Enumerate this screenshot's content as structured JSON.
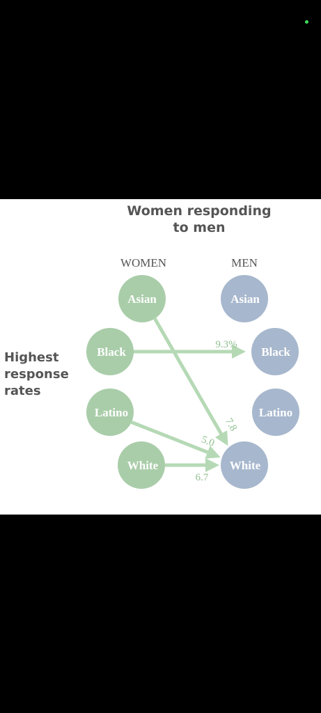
{
  "title_lines": [
    "Women responding",
    "to men"
  ],
  "side_label_lines": [
    "Highest",
    "response",
    "rates"
  ],
  "columns": {
    "left": "WOMEN",
    "right": "MEN"
  },
  "women": [
    "Asian",
    "Black",
    "Latino",
    "White"
  ],
  "men": [
    "Asian",
    "Black",
    "Latino",
    "White"
  ],
  "links": [
    {
      "from": "Black",
      "to": "Black",
      "label": "9.3%"
    },
    {
      "from": "Asian",
      "to": "White",
      "label": "7.8"
    },
    {
      "from": "Latino",
      "to": "White",
      "label": "5.0"
    },
    {
      "from": "White",
      "to": "White",
      "label": "6.7"
    }
  ],
  "colors": {
    "women_node": "#a9cda9",
    "men_node": "#a7b7cd",
    "arrow": "#b5d9b5",
    "value_text": "#8fbf8f",
    "status_dot": "#3ddc5a"
  }
}
